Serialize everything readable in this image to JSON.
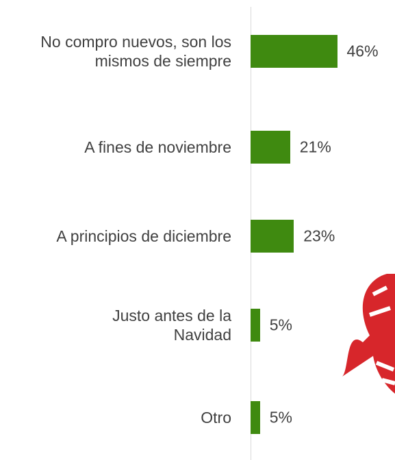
{
  "chart_data": {
    "type": "bar",
    "orientation": "horizontal",
    "categories": [
      "No compro nuevos, son los mismos de siempre",
      "A fines de noviembre",
      "A principios de diciembre",
      "Justo antes de la Navidad",
      "Otro"
    ],
    "values": [
      46,
      21,
      23,
      5,
      5
    ],
    "value_labels": [
      "46%",
      "21%",
      "23%",
      "5%",
      "5%"
    ],
    "color": "#3f8a10"
  }
}
